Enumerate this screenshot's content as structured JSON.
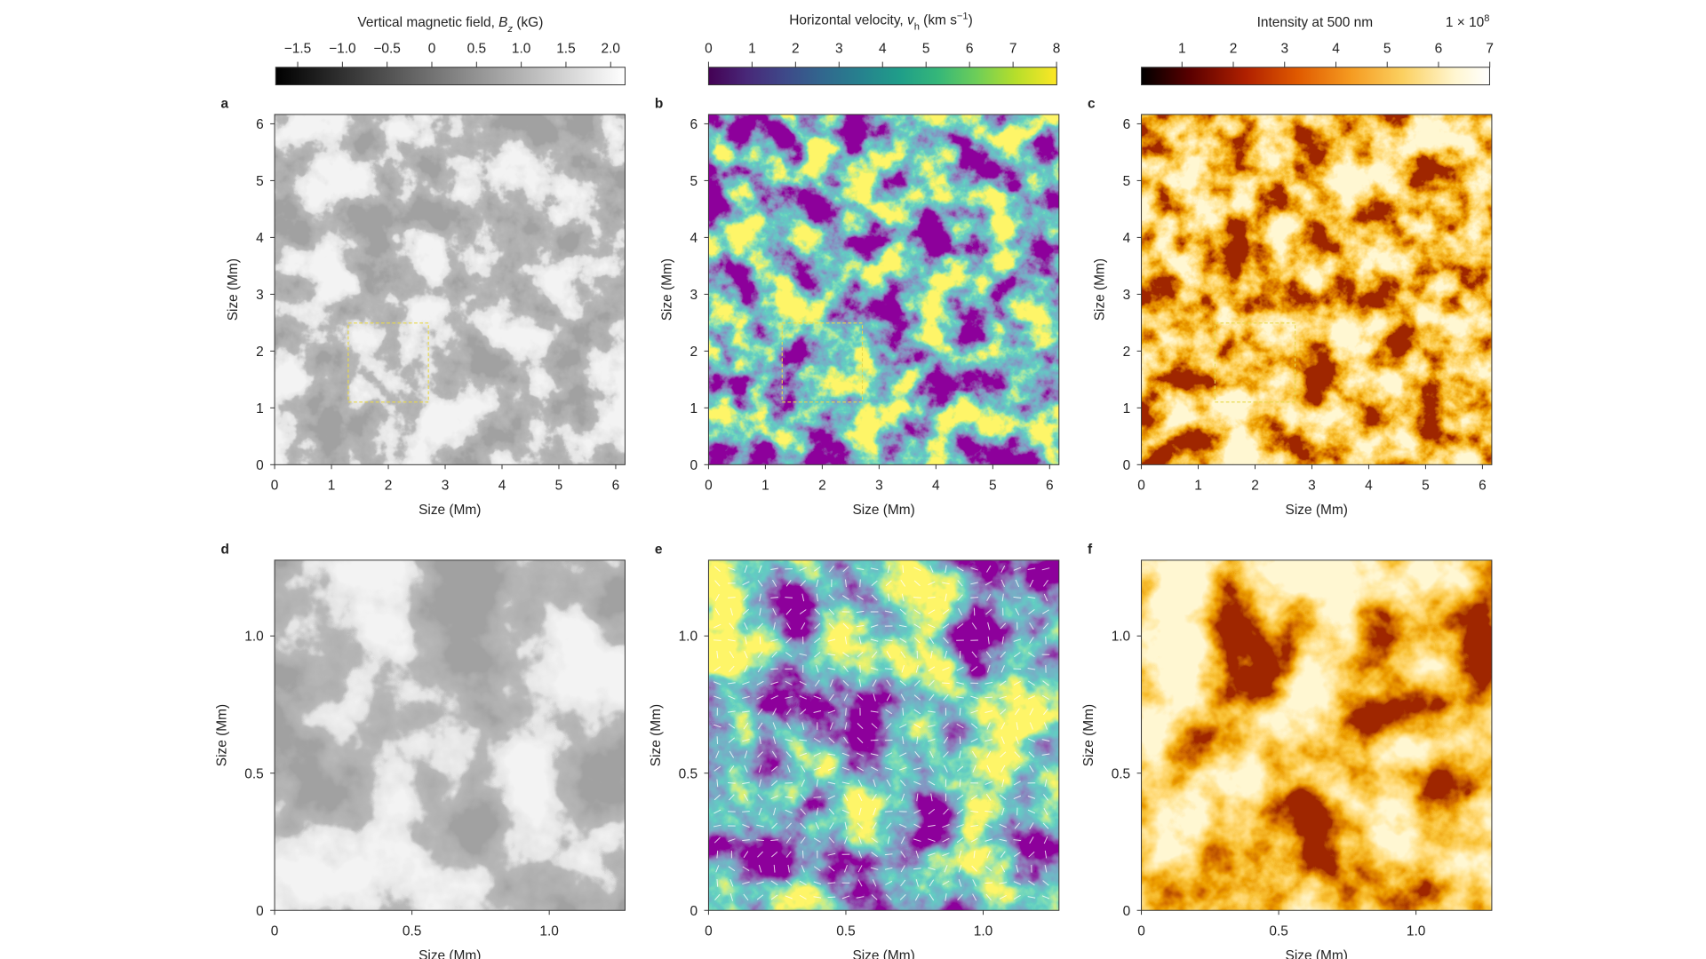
{
  "colorbars": [
    {
      "label": [
        "Vertical magnetic field, ",
        "B",
        "z",
        " (kG)"
      ],
      "ticks": [
        "−1.5",
        "−1.0",
        "−0.5",
        "0",
        "0.5",
        "1.0",
        "1.5",
        "2.0"
      ]
    },
    {
      "label": [
        "Horizontal velocity, ",
        "v",
        "h",
        " (km s",
        "−1",
        ")"
      ],
      "ticks": [
        "0",
        "1",
        "2",
        "3",
        "4",
        "5",
        "6",
        "7",
        "8"
      ]
    },
    {
      "label": [
        "Intensity at 500 nm"
      ],
      "multiplier": [
        "1 × 10",
        "8"
      ],
      "ticks": [
        "1",
        "2",
        "3",
        "4",
        "5",
        "6",
        "7"
      ]
    }
  ],
  "panels": [
    {
      "letter": "a",
      "xlabel": "Size (Mm)",
      "ylabel": "Size (Mm)",
      "xticks": [
        "0",
        "1",
        "2",
        "3",
        "4",
        "5",
        "6"
      ],
      "yticks": [
        "0",
        "1",
        "2",
        "3",
        "4",
        "5",
        "6"
      ]
    },
    {
      "letter": "b",
      "xlabel": "Size (Mm)",
      "ylabel": "Size (Mm)",
      "xticks": [
        "0",
        "1",
        "2",
        "3",
        "4",
        "5",
        "6"
      ],
      "yticks": [
        "0",
        "1",
        "2",
        "3",
        "4",
        "5",
        "6"
      ]
    },
    {
      "letter": "c",
      "xlabel": "Size (Mm)",
      "ylabel": "Size (Mm)",
      "xticks": [
        "0",
        "1",
        "2",
        "3",
        "4",
        "5",
        "6"
      ],
      "yticks": [
        "0",
        "1",
        "2",
        "3",
        "4",
        "5",
        "6"
      ]
    },
    {
      "letter": "d",
      "xlabel": "Size (Mm)",
      "ylabel": "Size (Mm)",
      "xticks": [
        "0",
        "0.5",
        "1.0"
      ],
      "yticks": [
        "0",
        "0.5",
        "1.0"
      ]
    },
    {
      "letter": "e",
      "xlabel": "Size (Mm)",
      "ylabel": "Size (Mm)",
      "xticks": [
        "0",
        "0.5",
        "1.0"
      ],
      "yticks": [
        "0",
        "0.5",
        "1.0"
      ]
    },
    {
      "letter": "f",
      "xlabel": "Size (Mm)",
      "ylabel": "Size (Mm)",
      "xticks": [
        "0",
        "0.5",
        "1.0"
      ],
      "yticks": [
        "0",
        "0.5",
        "1.0"
      ]
    }
  ]
}
